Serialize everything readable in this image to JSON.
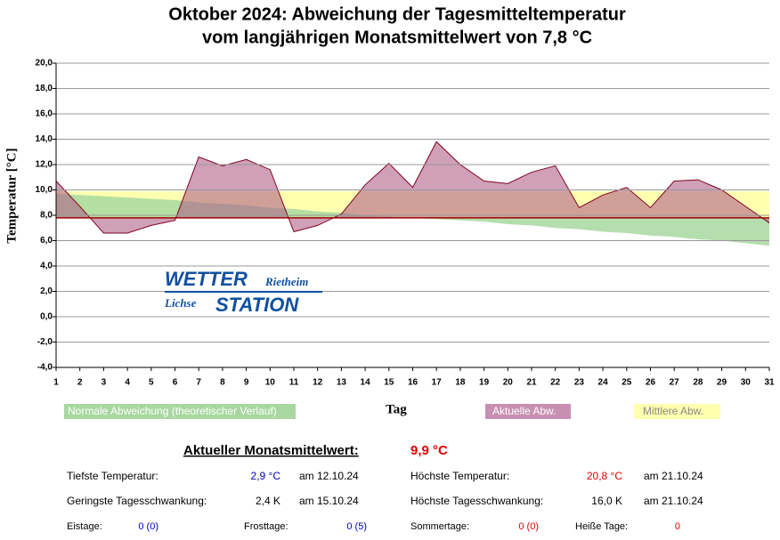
{
  "chart_data": {
    "type": "area",
    "title": "Oktober 2024: Abweichung der Tagesmitteltemperatur",
    "subtitle": "vom langjährigen Monatsmittelwert von 7,8 °C",
    "y_label": "Temperatur [°C]",
    "x_label": "Tag",
    "baseline": 7.8,
    "mean": 9.9,
    "x": [
      1,
      2,
      3,
      4,
      5,
      6,
      7,
      8,
      9,
      10,
      11,
      12,
      13,
      14,
      15,
      16,
      17,
      18,
      19,
      20,
      21,
      22,
      23,
      24,
      25,
      26,
      27,
      28,
      29,
      30,
      31
    ],
    "xlim": [
      1,
      31
    ],
    "xticks": [
      1,
      2,
      3,
      4,
      5,
      6,
      7,
      8,
      9,
      10,
      11,
      12,
      13,
      14,
      15,
      16,
      17,
      18,
      19,
      20,
      21,
      22,
      23,
      24,
      25,
      26,
      27,
      28,
      29,
      30,
      31
    ],
    "ylim": [
      -4,
      20
    ],
    "yticks": [
      {
        "value": -4,
        "label": "-4,0"
      },
      {
        "value": -2,
        "label": "-2,0"
      },
      {
        "value": 0,
        "label": "0,0"
      },
      {
        "value": 2,
        "label": "2,0"
      },
      {
        "value": 4,
        "label": "4,0"
      },
      {
        "value": 6,
        "label": "6,0"
      },
      {
        "value": 8,
        "label": "8,0"
      },
      {
        "value": 10,
        "label": "10,0"
      },
      {
        "value": 12,
        "label": "12,0"
      },
      {
        "value": 14,
        "label": "14,0"
      },
      {
        "value": 16,
        "label": "16,0"
      },
      {
        "value": 18,
        "label": "18,0"
      },
      {
        "value": 20,
        "label": "20,0"
      }
    ],
    "grid": true,
    "series": [
      {
        "name": "Normale Abweichung (theoretischer Verlauf)",
        "color": "#a8d8a0",
        "values": [
          9.7,
          9.6,
          9.5,
          9.4,
          9.3,
          9.2,
          9.0,
          8.9,
          8.8,
          8.6,
          8.5,
          8.3,
          8.2,
          8.0,
          7.9,
          7.8,
          7.7,
          7.6,
          7.5,
          7.3,
          7.2,
          7.0,
          6.9,
          6.7,
          6.6,
          6.4,
          6.3,
          6.1,
          6.0,
          5.8,
          5.6
        ]
      },
      {
        "name": "Aktuelle Abw.",
        "color": "#b06088",
        "values": [
          10.7,
          8.7,
          6.6,
          6.6,
          7.2,
          7.6,
          12.6,
          11.9,
          12.4,
          11.6,
          6.7,
          7.2,
          8.1,
          10.4,
          12.1,
          10.2,
          13.8,
          12.0,
          10.7,
          10.5,
          11.4,
          11.9,
          8.6,
          9.6,
          10.2,
          8.6,
          10.7,
          10.8,
          10.0,
          8.7,
          7.4
        ]
      },
      {
        "name": "Mittlere Abw.",
        "color": "#ffffb0"
      }
    ]
  },
  "logo": {
    "top": "WETTER",
    "place1": "Rietheim",
    "place2": "Lichse",
    "bottom": "STATION"
  },
  "stats": {
    "heading": "Aktueller Monatsmittelwert:",
    "heading_value": "9,9 °C",
    "rows": [
      [
        "Tiefste Temperatur:",
        "2,9 °C",
        "am 12.10.24",
        "Höchste Temperatur:",
        "20,8 °C",
        "am 21.10.24"
      ],
      [
        "Geringste Tagesschwankung:",
        "2,4 K",
        "am 15.10.24",
        "Höchste Tagesschwankung:",
        "16,0 K",
        "am 21.10.24"
      ]
    ],
    "days": [
      "Eistage:",
      "0 (0)",
      "Frosttage:",
      "0 (5)",
      "Sommertage:",
      "0 (0)",
      "Heiße Tage:",
      "0"
    ]
  }
}
